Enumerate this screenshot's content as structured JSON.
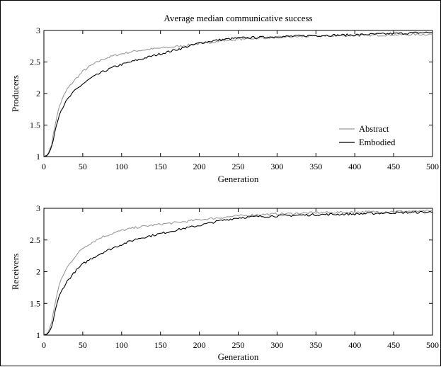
{
  "figure": {
    "title": "Average median communicative success"
  },
  "chart_data": [
    {
      "type": "line",
      "title": "Average median communicative success",
      "xlabel": "Generation",
      "ylabel": "Producers",
      "xlim": [
        0,
        500
      ],
      "ylim": [
        1,
        3
      ],
      "xticks": [
        0,
        50,
        100,
        150,
        200,
        250,
        300,
        350,
        400,
        450,
        500
      ],
      "yticks": [
        1,
        1.5,
        2,
        2.5,
        3
      ],
      "legend": {
        "placement": "lower-right",
        "entries": [
          "Abstract",
          "Embodied"
        ]
      },
      "grid": false,
      "series": [
        {
          "name": "Abstract",
          "color": "#9a9a9a",
          "x": [
            0,
            5,
            10,
            15,
            20,
            25,
            30,
            40,
            50,
            60,
            75,
            90,
            100,
            120,
            150,
            175,
            200,
            225,
            250,
            275,
            300,
            350,
            400,
            450,
            500
          ],
          "y": [
            1.0,
            1.03,
            1.2,
            1.55,
            1.8,
            1.95,
            2.07,
            2.22,
            2.35,
            2.44,
            2.54,
            2.6,
            2.63,
            2.68,
            2.72,
            2.75,
            2.79,
            2.83,
            2.86,
            2.88,
            2.89,
            2.91,
            2.92,
            2.93,
            2.94
          ]
        },
        {
          "name": "Embodied",
          "color": "#000000",
          "x": [
            0,
            5,
            10,
            15,
            20,
            25,
            30,
            40,
            50,
            60,
            75,
            90,
            100,
            120,
            150,
            175,
            200,
            225,
            250,
            275,
            300,
            350,
            400,
            450,
            500
          ],
          "y": [
            1.0,
            1.02,
            1.15,
            1.45,
            1.68,
            1.8,
            1.9,
            2.05,
            2.15,
            2.24,
            2.34,
            2.42,
            2.46,
            2.53,
            2.63,
            2.71,
            2.8,
            2.85,
            2.88,
            2.89,
            2.9,
            2.92,
            2.93,
            2.95,
            2.97
          ]
        }
      ]
    },
    {
      "type": "line",
      "xlabel": "Generation",
      "ylabel": "Receivers",
      "xlim": [
        0,
        500
      ],
      "ylim": [
        1,
        3
      ],
      "xticks": [
        0,
        50,
        100,
        150,
        200,
        250,
        300,
        350,
        400,
        450,
        500
      ],
      "yticks": [
        1,
        1.5,
        2,
        2.5,
        3
      ],
      "grid": false,
      "series": [
        {
          "color": "#9a9a9a",
          "x": [
            0,
            5,
            10,
            15,
            20,
            25,
            30,
            40,
            50,
            60,
            75,
            90,
            100,
            120,
            150,
            175,
            200,
            225,
            250,
            275,
            300,
            350,
            400,
            450,
            500
          ],
          "y": [
            1.0,
            1.03,
            1.2,
            1.55,
            1.8,
            1.95,
            2.07,
            2.24,
            2.37,
            2.45,
            2.55,
            2.61,
            2.65,
            2.7,
            2.75,
            2.78,
            2.82,
            2.85,
            2.88,
            2.9,
            2.91,
            2.93,
            2.94,
            2.95,
            2.96
          ]
        },
        {
          "color": "#000000",
          "x": [
            0,
            5,
            10,
            15,
            20,
            25,
            30,
            40,
            50,
            60,
            75,
            90,
            100,
            120,
            150,
            175,
            200,
            225,
            250,
            275,
            300,
            350,
            400,
            450,
            500
          ],
          "y": [
            1.0,
            1.02,
            1.12,
            1.42,
            1.62,
            1.75,
            1.85,
            2.0,
            2.12,
            2.2,
            2.3,
            2.38,
            2.43,
            2.52,
            2.6,
            2.67,
            2.73,
            2.8,
            2.85,
            2.87,
            2.88,
            2.9,
            2.91,
            2.93,
            2.94
          ]
        }
      ]
    }
  ]
}
